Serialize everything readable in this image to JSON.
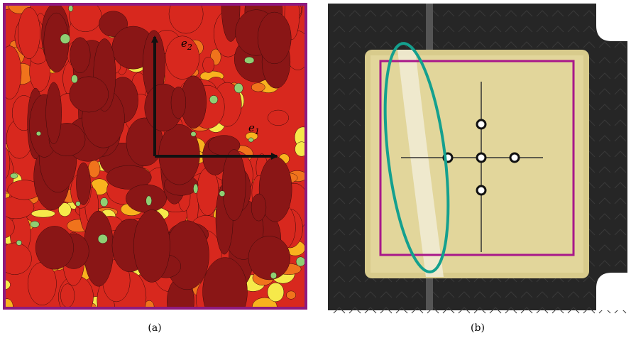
{
  "panels": [
    {
      "caption": "(a)",
      "axis_labels": [
        {
          "base": "e",
          "sub": "2"
        },
        {
          "base": "e",
          "sub": "1"
        }
      ]
    },
    {
      "caption": "(b)"
    }
  ]
}
